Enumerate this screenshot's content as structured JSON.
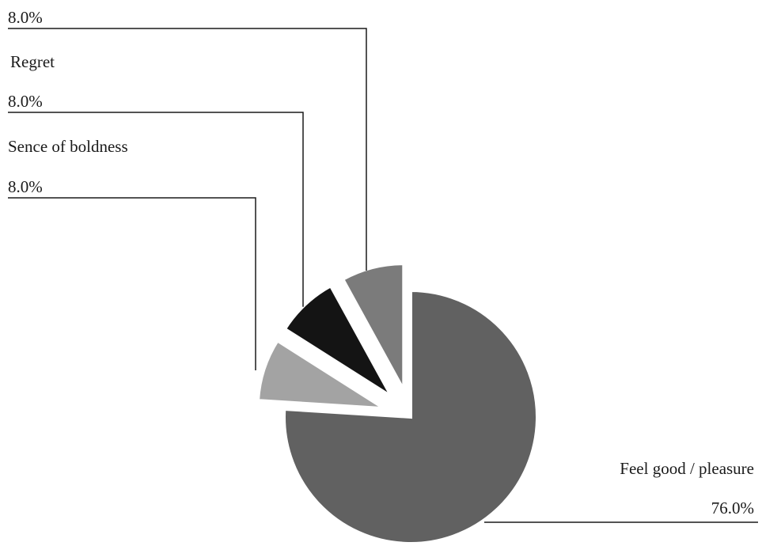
{
  "chart_data": {
    "type": "pie",
    "title": "",
    "slices": [
      {
        "label": "Feel good / pleasure",
        "value": 76.0,
        "value_text": "76.0%",
        "color": "#616161"
      },
      {
        "label": "Sence of boldness",
        "value": 8.0,
        "value_text": "8.0%",
        "color": "#a3a3a3"
      },
      {
        "label": "Regret",
        "value": 8.0,
        "value_text": "8.0%",
        "color": "#141414"
      },
      {
        "label": "",
        "value": 8.0,
        "value_text": "8.0%",
        "color": "#7b7b7b"
      }
    ],
    "exploded": true,
    "legend": "none"
  }
}
